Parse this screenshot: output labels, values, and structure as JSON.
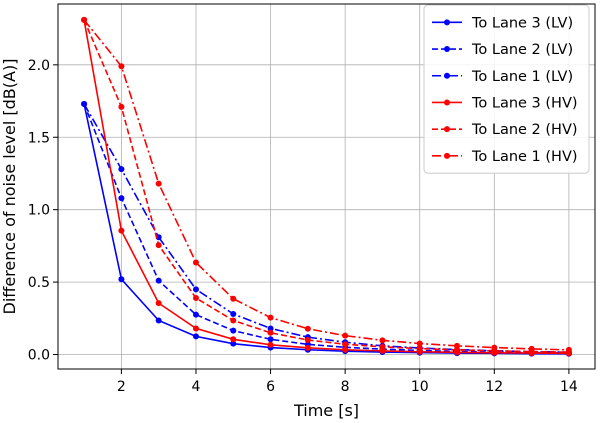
{
  "chart_data": {
    "type": "line",
    "title": "",
    "xlabel": "Time [s]",
    "ylabel": "Difference of noise level [dB(A)]",
    "xlim": [
      0.3,
      14.7
    ],
    "ylim": [
      -0.1,
      2.42
    ],
    "xticks": [
      2,
      4,
      6,
      8,
      10,
      12,
      14
    ],
    "yticks": [
      0.0,
      0.5,
      1.0,
      1.5,
      2.0
    ],
    "xtick_labels": [
      "2",
      "4",
      "6",
      "8",
      "10",
      "12",
      "14"
    ],
    "ytick_labels": [
      "0.0",
      "0.5",
      "1.0",
      "1.5",
      "2.0"
    ],
    "grid": true,
    "legend_position": "top-right",
    "x": [
      1,
      2,
      3,
      4,
      5,
      6,
      7,
      8,
      9,
      10,
      11,
      12,
      13,
      14
    ],
    "series": [
      {
        "name": "To Lane 3 (LV)",
        "color": "#0000ff",
        "dash": "solid",
        "values": [
          1.73,
          0.52,
          0.235,
          0.125,
          0.075,
          0.048,
          0.033,
          0.023,
          0.017,
          0.013,
          0.01,
          0.008,
          0.006,
          0.005
        ]
      },
      {
        "name": "To Lane 2 (LV)",
        "color": "#0000ff",
        "dash": "dashed",
        "values": [
          1.73,
          1.08,
          0.51,
          0.275,
          0.165,
          0.105,
          0.07,
          0.05,
          0.037,
          0.028,
          0.021,
          0.016,
          0.013,
          0.01
        ]
      },
      {
        "name": "To Lane 1 (LV)",
        "color": "#0000ff",
        "dash": "dashdot",
        "values": [
          1.73,
          1.28,
          0.81,
          0.45,
          0.28,
          0.18,
          0.12,
          0.085,
          0.06,
          0.045,
          0.034,
          0.026,
          0.02,
          0.016
        ]
      },
      {
        "name": "To Lane 3 (HV)",
        "color": "#ff0000",
        "dash": "solid",
        "values": [
          2.31,
          0.855,
          0.355,
          0.18,
          0.105,
          0.067,
          0.046,
          0.033,
          0.025,
          0.019,
          0.015,
          0.012,
          0.01,
          0.008
        ]
      },
      {
        "name": "To Lane 2 (HV)",
        "color": "#ff0000",
        "dash": "dashed",
        "values": [
          2.31,
          1.71,
          0.755,
          0.39,
          0.235,
          0.15,
          0.1,
          0.071,
          0.053,
          0.041,
          0.032,
          0.025,
          0.02,
          0.016
        ]
      },
      {
        "name": "To Lane 1 (HV)",
        "color": "#ff0000",
        "dash": "dashdot",
        "values": [
          2.31,
          1.99,
          1.18,
          0.635,
          0.385,
          0.255,
          0.178,
          0.13,
          0.098,
          0.076,
          0.06,
          0.048,
          0.039,
          0.032
        ]
      }
    ]
  }
}
